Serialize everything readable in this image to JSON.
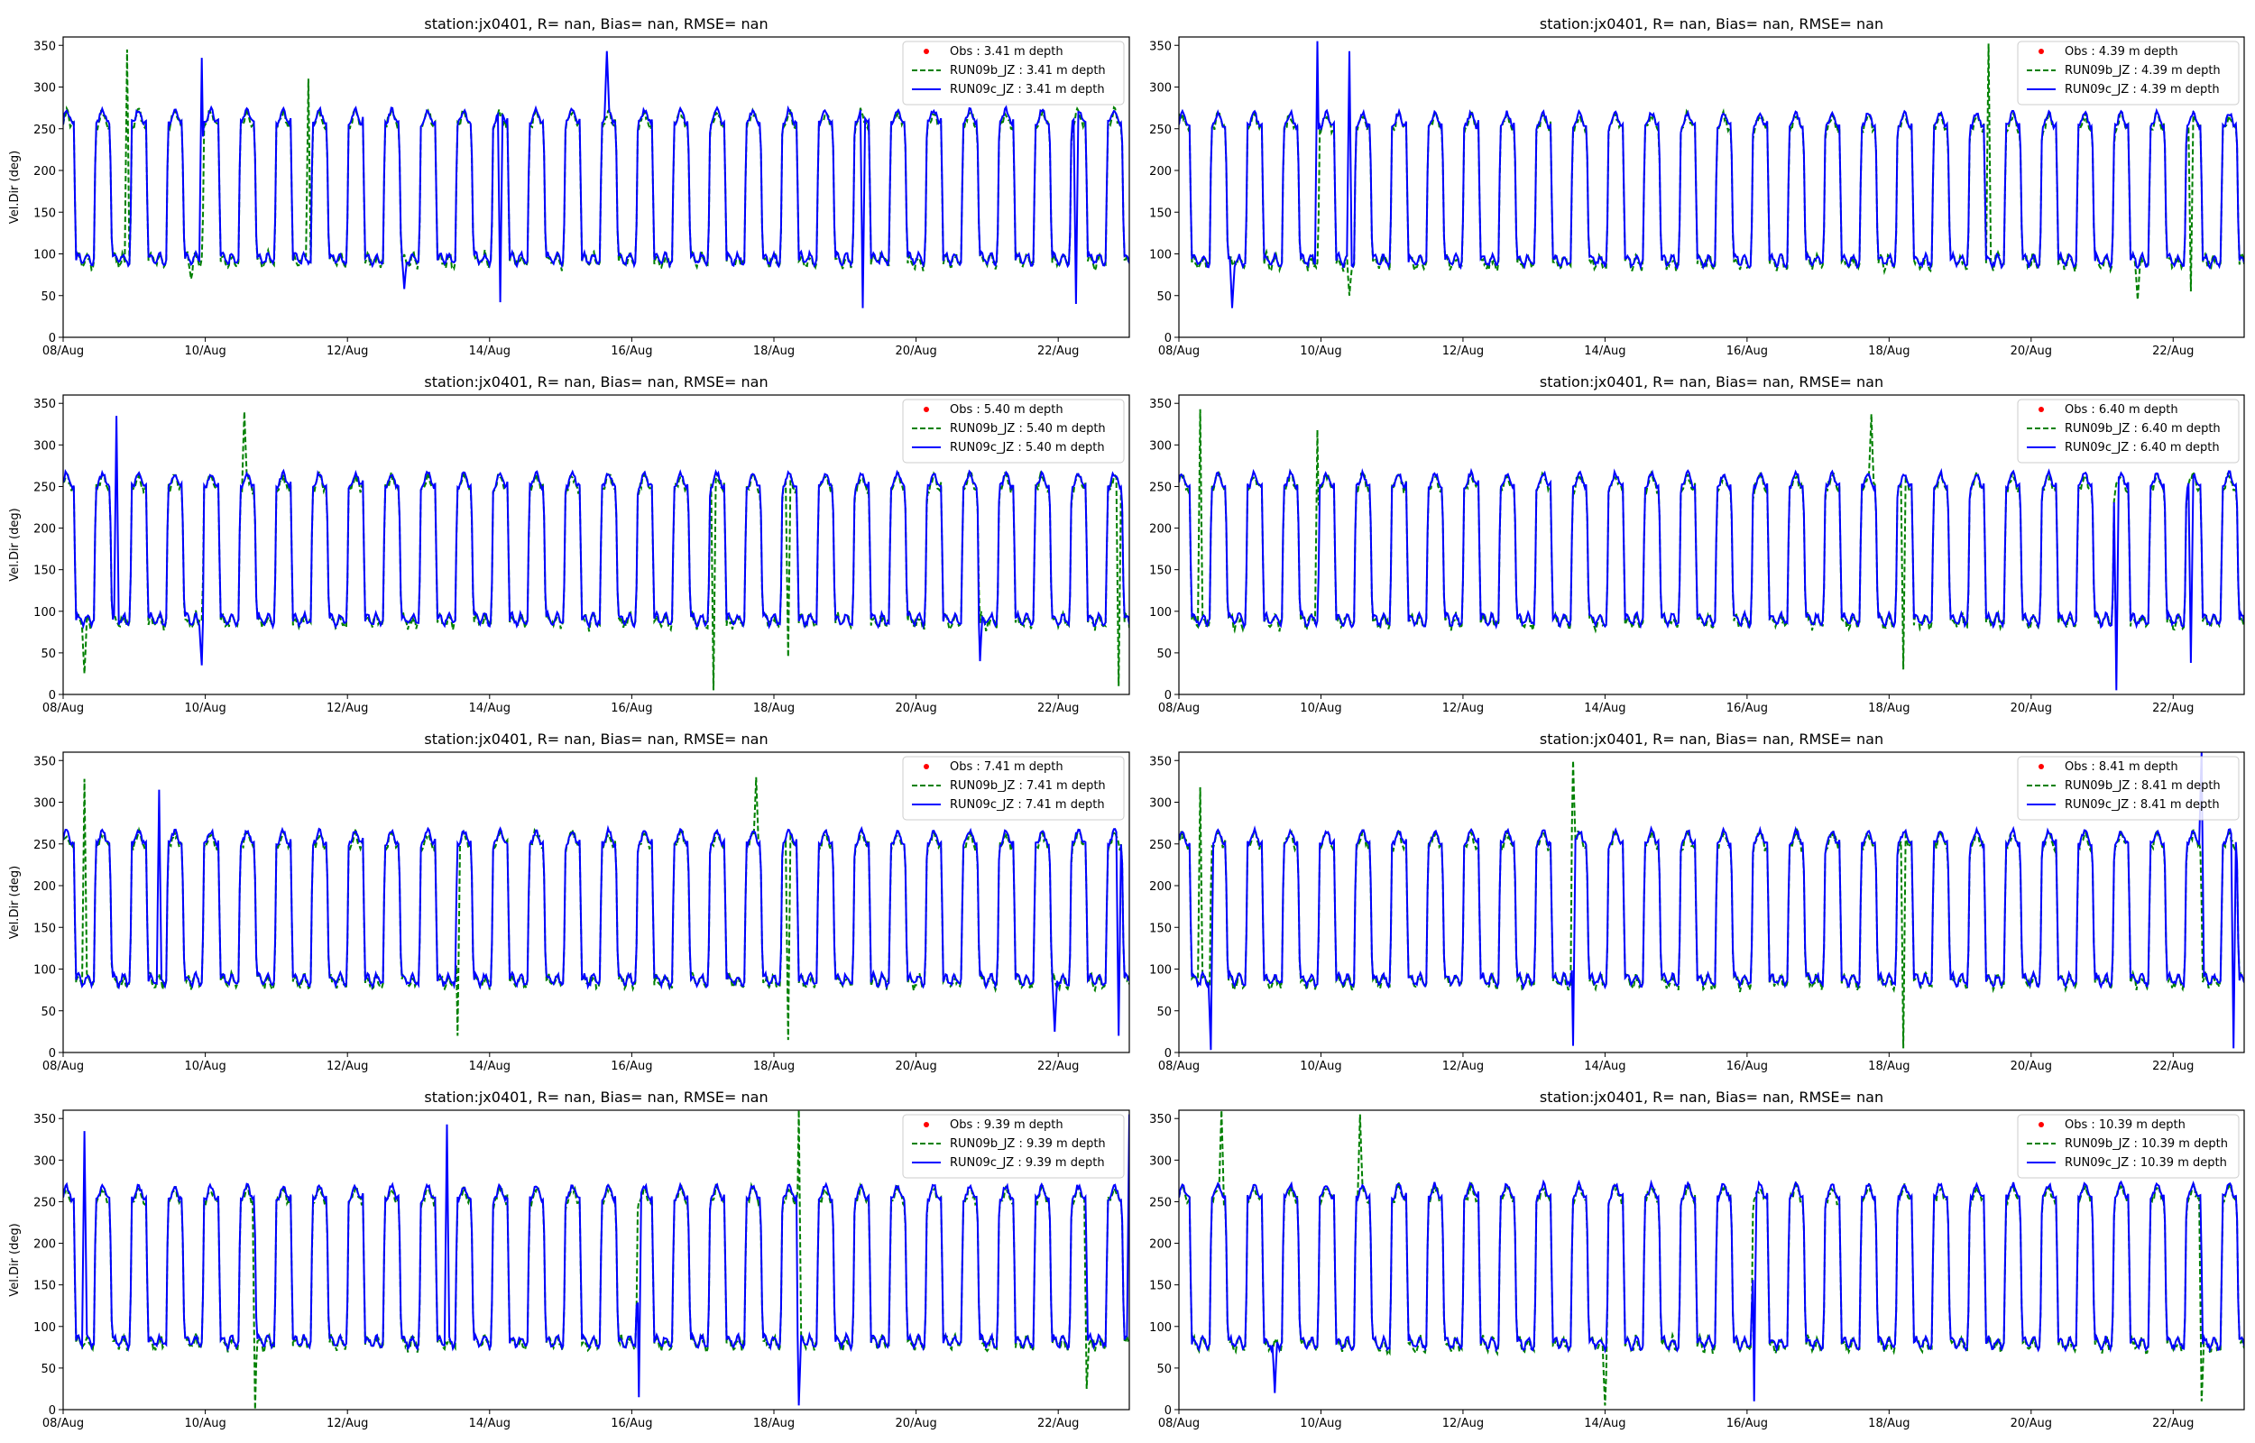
{
  "figure": {
    "panels": [
      {
        "title": "station:jx0401, R=   nan, Bias=    nan, RMSE=    nan",
        "ylabel": "Vel.Dir (deg)",
        "depth": "3.41"
      },
      {
        "title": "station:jx0401, R=   nan, Bias=    nan, RMSE=    nan",
        "ylabel": "",
        "depth": "4.39"
      },
      {
        "title": "station:jx0401, R=   nan, Bias=    nan, RMSE=    nan",
        "ylabel": "Vel.Dir (deg)",
        "depth": "5.40"
      },
      {
        "title": "station:jx0401, R=   nan, Bias=    nan, RMSE=    nan",
        "ylabel": "",
        "depth": "6.40"
      },
      {
        "title": "station:jx0401, R=   nan, Bias=    nan, RMSE=    nan",
        "ylabel": "Vel.Dir (deg)",
        "depth": "7.41"
      },
      {
        "title": "station:jx0401, R=   nan, Bias=    nan, RMSE=    nan",
        "ylabel": "",
        "depth": "8.41"
      },
      {
        "title": "station:jx0401, R=   nan, Bias=    nan, RMSE=    nan",
        "ylabel": "Vel.Dir (deg)",
        "depth": "9.39"
      },
      {
        "title": "station:jx0401, R=   nan, Bias=    nan, RMSE=    nan",
        "ylabel": "",
        "depth": "10.39"
      }
    ]
  },
  "chart_data": {
    "type": "line",
    "layout": "4x2 grid of subplots",
    "xlim": [
      "2024-08-08",
      "2024-08-23"
    ],
    "xticks": [
      "08/Aug",
      "10/Aug",
      "12/Aug",
      "14/Aug",
      "16/Aug",
      "18/Aug",
      "20/Aug",
      "22/Aug"
    ],
    "ylim": [
      0,
      360
    ],
    "yticks": [
      0,
      50,
      100,
      150,
      200,
      250,
      300,
      350
    ],
    "legend_position": "upper right",
    "grid": false,
    "series_style": [
      {
        "name": "Obs",
        "color": "#ff0000",
        "marker": "dot"
      },
      {
        "name": "RUN09b_JZ",
        "color": "#008000",
        "line": "dashed"
      },
      {
        "name": "RUN09c_JZ",
        "color": "#0000ff",
        "line": "solid"
      }
    ],
    "panels": [
      {
        "depth_m": 3.41,
        "legend": [
          "Obs : 3.41 m depth",
          "RUN09b_JZ : 3.41 m depth",
          "RUN09c_JZ : 3.41 m depth"
        ],
        "low_level_deg": 92,
        "high_level_deg": 262,
        "spikes": [
          {
            "x": 0.06,
            "v": 345,
            "s": "b"
          },
          {
            "x": 0.13,
            "v": 335,
            "s": "c"
          },
          {
            "x": 0.23,
            "v": 310,
            "s": "b"
          },
          {
            "x": 0.51,
            "v": 343,
            "s": "c"
          },
          {
            "x": 0.12,
            "v": 70,
            "s": "b"
          },
          {
            "x": 0.32,
            "v": 58,
            "s": "c"
          },
          {
            "x": 0.41,
            "v": 42,
            "s": "c"
          },
          {
            "x": 0.75,
            "v": 35,
            "s": "c"
          },
          {
            "x": 0.95,
            "v": 40,
            "s": "c"
          }
        ]
      },
      {
        "depth_m": 4.39,
        "legend": [
          "Obs : 4.39 m depth",
          "RUN09b_JZ : 4.39 m depth",
          "RUN09c_JZ : 4.39 m depth"
        ],
        "low_level_deg": 90,
        "high_level_deg": 258,
        "spikes": [
          {
            "x": 0.13,
            "v": 355,
            "s": "c"
          },
          {
            "x": 0.16,
            "v": 343,
            "s": "c"
          },
          {
            "x": 0.76,
            "v": 352,
            "s": "b"
          },
          {
            "x": 0.05,
            "v": 35,
            "s": "c"
          },
          {
            "x": 0.16,
            "v": 50,
            "s": "b"
          },
          {
            "x": 0.9,
            "v": 45,
            "s": "b"
          },
          {
            "x": 0.95,
            "v": 55,
            "s": "b"
          }
        ]
      },
      {
        "depth_m": 5.4,
        "legend": [
          "Obs : 5.40 m depth",
          "RUN09b_JZ : 5.40 m depth",
          "RUN09c_JZ : 5.40 m depth"
        ],
        "low_level_deg": 88,
        "high_level_deg": 255,
        "spikes": [
          {
            "x": 0.05,
            "v": 335,
            "s": "c"
          },
          {
            "x": 0.17,
            "v": 340,
            "s": "b"
          },
          {
            "x": 0.02,
            "v": 25,
            "s": "b"
          },
          {
            "x": 0.13,
            "v": 35,
            "s": "c"
          },
          {
            "x": 0.61,
            "v": 5,
            "s": "b"
          },
          {
            "x": 0.68,
            "v": 45,
            "s": "b"
          },
          {
            "x": 0.99,
            "v": 10,
            "s": "b"
          },
          {
            "x": 0.86,
            "v": 40,
            "s": "c"
          }
        ]
      },
      {
        "depth_m": 6.4,
        "legend": [
          "Obs : 6.40 m depth",
          "RUN09b_JZ : 6.40 m depth",
          "RUN09c_JZ : 6.40 m depth"
        ],
        "low_level_deg": 88,
        "high_level_deg": 255,
        "spikes": [
          {
            "x": 0.02,
            "v": 343,
            "s": "b"
          },
          {
            "x": 0.13,
            "v": 318,
            "s": "b"
          },
          {
            "x": 0.65,
            "v": 337,
            "s": "b"
          },
          {
            "x": 0.88,
            "v": 5,
            "s": "c"
          },
          {
            "x": 0.68,
            "v": 30,
            "s": "b"
          },
          {
            "x": 0.95,
            "v": 38,
            "s": "c"
          }
        ]
      },
      {
        "depth_m": 7.41,
        "legend": [
          "Obs : 7.41 m depth",
          "RUN09b_JZ : 7.41 m depth",
          "RUN09c_JZ : 7.41 m depth"
        ],
        "low_level_deg": 85,
        "high_level_deg": 255,
        "spikes": [
          {
            "x": 0.02,
            "v": 328,
            "s": "b"
          },
          {
            "x": 0.09,
            "v": 315,
            "s": "c"
          },
          {
            "x": 0.65,
            "v": 330,
            "s": "b"
          },
          {
            "x": 0.37,
            "v": 20,
            "s": "b"
          },
          {
            "x": 0.68,
            "v": 15,
            "s": "b"
          },
          {
            "x": 0.99,
            "v": 20,
            "s": "c"
          },
          {
            "x": 0.93,
            "v": 25,
            "s": "c"
          }
        ]
      },
      {
        "depth_m": 8.41,
        "legend": [
          "Obs : 8.41 m depth",
          "RUN09b_JZ : 8.41 m depth",
          "RUN09c_JZ : 8.41 m depth"
        ],
        "low_level_deg": 85,
        "high_level_deg": 255,
        "spikes": [
          {
            "x": 0.02,
            "v": 318,
            "s": "b"
          },
          {
            "x": 0.37,
            "v": 350,
            "s": "b"
          },
          {
            "x": 0.96,
            "v": 360,
            "s": "c"
          },
          {
            "x": 0.03,
            "v": 3,
            "s": "c"
          },
          {
            "x": 0.37,
            "v": 8,
            "s": "c"
          },
          {
            "x": 0.68,
            "v": 5,
            "s": "b"
          },
          {
            "x": 0.99,
            "v": 5,
            "s": "c"
          }
        ]
      },
      {
        "depth_m": 9.39,
        "legend": [
          "Obs : 9.39 m depth",
          "RUN09b_JZ : 9.39 m depth",
          "RUN09c_JZ : 9.39 m depth"
        ],
        "low_level_deg": 80,
        "high_level_deg": 258,
        "spikes": [
          {
            "x": 0.02,
            "v": 335,
            "s": "c"
          },
          {
            "x": 0.36,
            "v": 343,
            "s": "c"
          },
          {
            "x": 0.69,
            "v": 360,
            "s": "b"
          },
          {
            "x": 1.0,
            "v": 355,
            "s": "c"
          },
          {
            "x": 0.18,
            "v": 0,
            "s": "b"
          },
          {
            "x": 0.54,
            "v": 15,
            "s": "c"
          },
          {
            "x": 0.69,
            "v": 5,
            "s": "c"
          },
          {
            "x": 0.96,
            "v": 25,
            "s": "b"
          }
        ]
      },
      {
        "depth_m": 10.39,
        "legend": [
          "Obs : 10.39 m depth",
          "RUN09b_JZ : 10.39 m depth",
          "RUN09c_JZ : 10.39 m depth"
        ],
        "low_level_deg": 78,
        "high_level_deg": 260,
        "spikes": [
          {
            "x": 0.04,
            "v": 360,
            "s": "b"
          },
          {
            "x": 0.17,
            "v": 355,
            "s": "b"
          },
          {
            "x": 0.54,
            "v": 360,
            "s": "c"
          },
          {
            "x": 0.09,
            "v": 20,
            "s": "c"
          },
          {
            "x": 0.4,
            "v": 5,
            "s": "b"
          },
          {
            "x": 0.54,
            "v": 10,
            "s": "c"
          },
          {
            "x": 0.96,
            "v": 10,
            "s": "b"
          }
        ]
      }
    ]
  }
}
